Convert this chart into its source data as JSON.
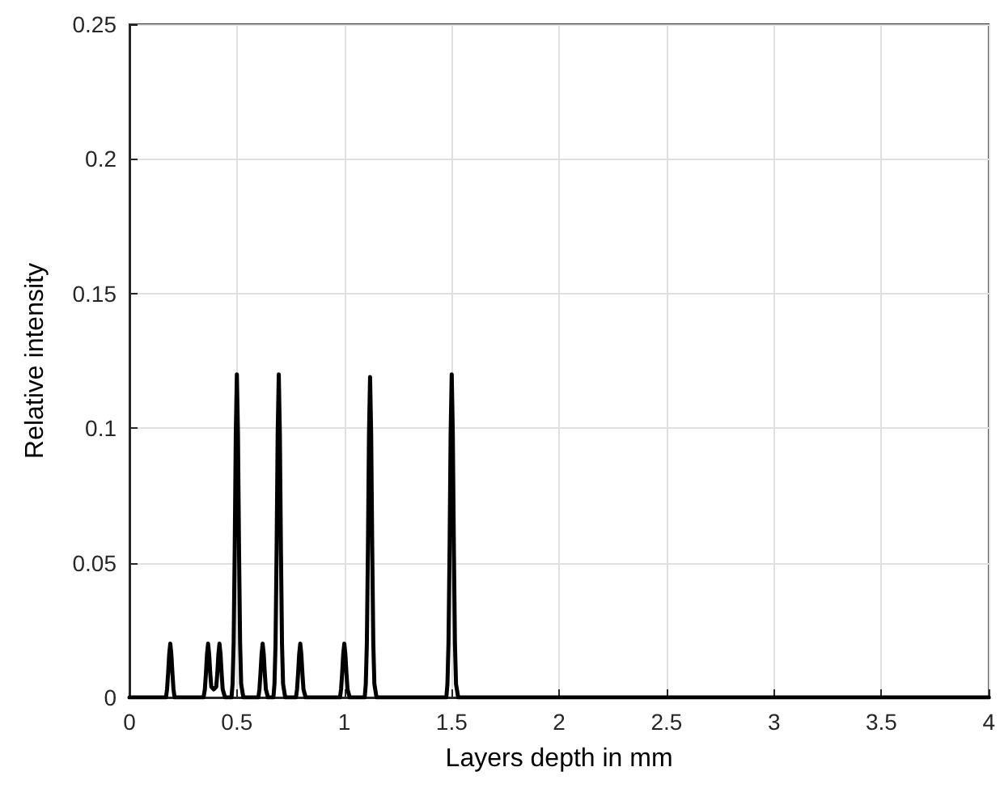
{
  "chart_data": {
    "type": "line",
    "xlabel": "Layers depth in mm",
    "ylabel": "Relative intensity",
    "xlim": [
      0,
      4
    ],
    "ylim": [
      0,
      0.25
    ],
    "xticks": [
      0,
      0.5,
      1,
      1.5,
      2,
      2.5,
      3,
      3.5,
      4
    ],
    "yticks": [
      0,
      0.05,
      0.1,
      0.15,
      0.2,
      0.25
    ],
    "grid": true,
    "marker": "none",
    "line_style": "solid",
    "series": [
      {
        "color": "#000000",
        "x": [
          0,
          0.17,
          0.175,
          0.18,
          0.185,
          0.19,
          0.195,
          0.2,
          0.205,
          0.21,
          0.345,
          0.351,
          0.356,
          0.361,
          0.366,
          0.371,
          0.376,
          0.381,
          0.3925,
          0.404,
          0.409,
          0.414,
          0.419,
          0.424,
          0.429,
          0.434,
          0.445,
          0.475,
          0.48,
          0.485,
          0.49,
          0.495,
          0.5,
          0.505,
          0.51,
          0.515,
          0.52,
          0.53,
          0.6,
          0.605,
          0.61,
          0.615,
          0.62,
          0.625,
          0.63,
          0.635,
          0.645,
          0.67,
          0.675,
          0.68,
          0.685,
          0.69,
          0.695,
          0.7,
          0.705,
          0.71,
          0.715,
          0.725,
          0.775,
          0.78,
          0.785,
          0.79,
          0.795,
          0.8,
          0.805,
          0.81,
          0.82,
          0.98,
          0.985,
          0.99,
          0.995,
          1.0,
          1.005,
          1.01,
          1.015,
          1.025,
          1.095,
          1.1,
          1.105,
          1.11,
          1.115,
          1.12,
          1.125,
          1.13,
          1.135,
          1.14,
          1.15,
          1.475,
          1.48,
          1.485,
          1.49,
          1.495,
          1.5,
          1.505,
          1.51,
          1.515,
          1.52,
          1.53,
          4
        ],
        "values": [
          0,
          0,
          0.003,
          0.009,
          0.016,
          0.02,
          0.016,
          0.009,
          0.003,
          0,
          0,
          0.003,
          0.009,
          0.016,
          0.02,
          0.016,
          0.009,
          0.004,
          0.003,
          0.004,
          0.009,
          0.016,
          0.02,
          0.016,
          0.009,
          0.003,
          0,
          0,
          0.005,
          0.02,
          0.055,
          0.098,
          0.12,
          0.098,
          0.055,
          0.02,
          0.005,
          0,
          0,
          0.003,
          0.009,
          0.016,
          0.02,
          0.016,
          0.009,
          0.003,
          0,
          0,
          0.005,
          0.02,
          0.055,
          0.098,
          0.12,
          0.098,
          0.055,
          0.02,
          0.005,
          0,
          0,
          0.003,
          0.009,
          0.016,
          0.02,
          0.016,
          0.009,
          0.003,
          0,
          0,
          0.003,
          0.009,
          0.016,
          0.02,
          0.016,
          0.009,
          0.003,
          0,
          0,
          0.005,
          0.02,
          0.055,
          0.098,
          0.119,
          0.098,
          0.055,
          0.02,
          0.005,
          0,
          0,
          0.005,
          0.02,
          0.055,
          0.098,
          0.12,
          0.098,
          0.055,
          0.02,
          0.005,
          0,
          0
        ]
      }
    ]
  }
}
